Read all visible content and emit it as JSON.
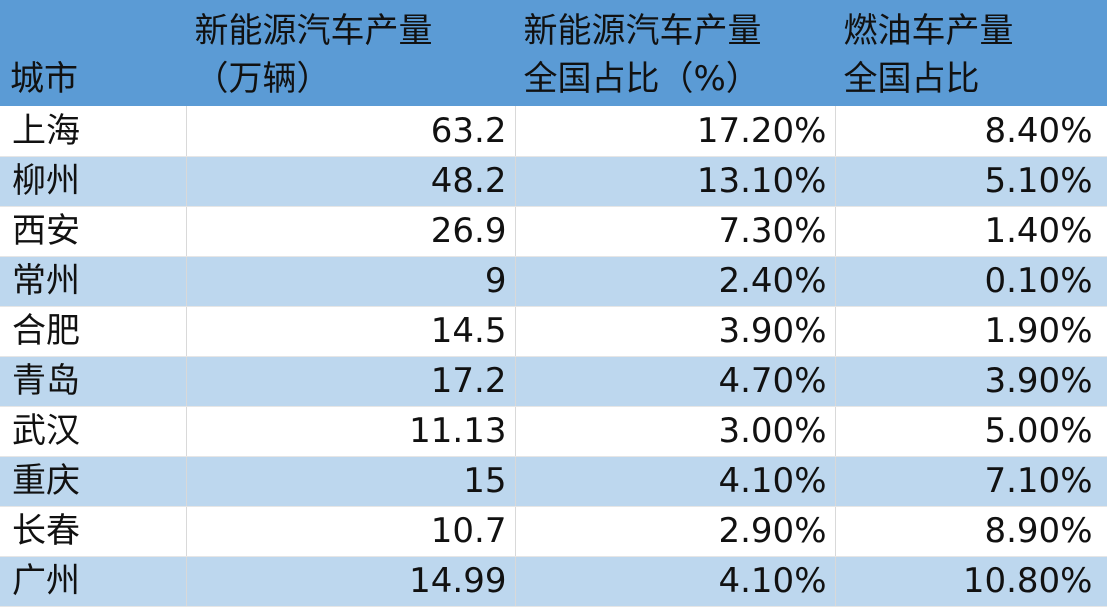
{
  "header": {
    "city": [
      "",
      "城市"
    ],
    "nev_output": [
      "新能源汽车产量",
      "（万辆）"
    ],
    "nev_share": [
      "新能源汽车产量",
      "全国占比（%）"
    ],
    "fuel_share": [
      "燃油车产量",
      "全国占比"
    ]
  },
  "rows": [
    {
      "city": "上海",
      "nev_output": "63.2",
      "nev_share": "17.20%",
      "fuel_share": "8.40%"
    },
    {
      "city": "柳州",
      "nev_output": "48.2",
      "nev_share": "13.10%",
      "fuel_share": "5.10%"
    },
    {
      "city": "西安",
      "nev_output": "26.9",
      "nev_share": "7.30%",
      "fuel_share": "1.40%"
    },
    {
      "city": "常州",
      "nev_output": "9",
      "nev_share": "2.40%",
      "fuel_share": "0.10%"
    },
    {
      "city": "合肥",
      "nev_output": "14.5",
      "nev_share": "3.90%",
      "fuel_share": "1.90%"
    },
    {
      "city": "青岛",
      "nev_output": "17.2",
      "nev_share": "4.70%",
      "fuel_share": "3.90%"
    },
    {
      "city": "武汉",
      "nev_output": "11.13",
      "nev_share": "3.00%",
      "fuel_share": "5.00%"
    },
    {
      "city": "重庆",
      "nev_output": "15",
      "nev_share": "4.10%",
      "fuel_share": "7.10%"
    },
    {
      "city": "长春",
      "nev_output": "10.7",
      "nev_share": "2.90%",
      "fuel_share": "8.90%"
    },
    {
      "city": "广州",
      "nev_output": "14.99",
      "nev_share": "4.10%",
      "fuel_share": "10.80%"
    }
  ],
  "colors": {
    "header_bg": "#5b9bd5",
    "band_bg": "#bdd7ee",
    "row_bg": "#ffffff"
  }
}
